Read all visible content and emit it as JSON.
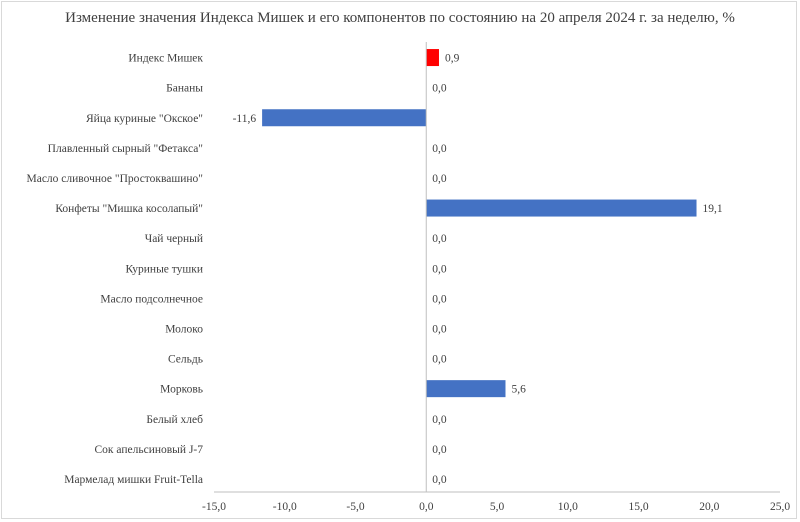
{
  "chart_data": {
    "type": "bar",
    "orientation": "horizontal",
    "title": "Изменение значения Индекса Мишек и его компонентов по состоянию на 20 апреля 2024 г. за неделю, %",
    "categories": [
      "Индекс Мишек",
      "Бананы",
      "Яйца куриные \"Окское\"",
      "Плавленный сырный \"Фетакса\"",
      "Масло сливочное \"Простоквашино\"",
      "Конфеты \"Мишка косолапый\"",
      "Чай черный",
      "Куриные тушки",
      "Масло подсолнечное",
      "Молоко",
      "Сельдь",
      "Морковь",
      "Белый хлеб",
      "Сок апельсиновый J-7",
      "Мармелад мишки Fruit-Tella"
    ],
    "values": [
      0.9,
      0.0,
      -11.6,
      0.0,
      0.0,
      19.1,
      0.0,
      0.0,
      0.0,
      0.0,
      0.0,
      5.6,
      0.0,
      0.0,
      0.0
    ],
    "value_labels": [
      "0,9",
      "0,0",
      "-11,6",
      "0,0",
      "0,0",
      "19,1",
      "0,0",
      "0,0",
      "0,0",
      "0,0",
      "0,0",
      "5,6",
      "0,0",
      "0,0",
      "0,0"
    ],
    "xlim": [
      -15,
      25
    ],
    "x_ticks": [
      -15,
      -10,
      -5,
      0,
      5,
      10,
      15,
      20,
      25
    ],
    "x_tick_labels": [
      "-15,0",
      "-10,0",
      "-5,0",
      "0,0",
      "5,0",
      "10,0",
      "15,0",
      "20,0",
      "25,0"
    ],
    "grid": false,
    "legend": "none",
    "colors": {
      "default_bar": "#4472c4",
      "highlight_bar": "#ff0000",
      "axis": "#bfbfbf",
      "text": "#404040"
    },
    "highlight_index": 0
  }
}
